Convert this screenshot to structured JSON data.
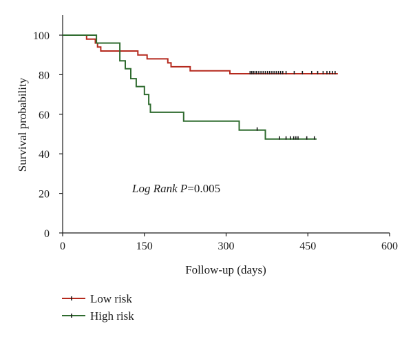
{
  "chart_data": {
    "type": "line",
    "xlabel": "Follow-up (days)",
    "ylabel": "Survival probability",
    "xlim": [
      0,
      600
    ],
    "ylim": [
      0,
      100
    ],
    "xticks": [
      0,
      150,
      300,
      450,
      600
    ],
    "yticks": [
      0,
      20,
      40,
      60,
      80,
      100
    ],
    "xtick_labels": [
      "0",
      "150",
      "300",
      "450",
      "600"
    ],
    "ytick_labels": [
      "0",
      "20",
      "40",
      "60",
      "80",
      "100"
    ],
    "grid": false,
    "legend_position": "bottom-left",
    "annotation": {
      "italic_part": "Log Rank P",
      "rest": "=0.005",
      "x": 180,
      "y": 23
    },
    "series": [
      {
        "name": "Low risk",
        "color": "#b5291d",
        "steps": [
          [
            0,
            100
          ],
          [
            44,
            100
          ],
          [
            44,
            98
          ],
          [
            60,
            98
          ],
          [
            60,
            96
          ],
          [
            64,
            96
          ],
          [
            64,
            94
          ],
          [
            70,
            94
          ],
          [
            70,
            92
          ],
          [
            138,
            92
          ],
          [
            138,
            90
          ],
          [
            155,
            90
          ],
          [
            155,
            88
          ],
          [
            193,
            88
          ],
          [
            193,
            86
          ],
          [
            199,
            86
          ],
          [
            199,
            84
          ],
          [
            234,
            84
          ],
          [
            234,
            82
          ],
          [
            307,
            82
          ],
          [
            307,
            80.5
          ],
          [
            505,
            80.5
          ]
        ],
        "censored": [
          [
            344,
            80.5
          ],
          [
            347,
            80.5
          ],
          [
            350,
            80.5
          ],
          [
            353,
            80.5
          ],
          [
            356,
            80.5
          ],
          [
            360,
            80.5
          ],
          [
            364,
            80.5
          ],
          [
            368,
            80.5
          ],
          [
            372,
            80.5
          ],
          [
            376,
            80.5
          ],
          [
            380,
            80.5
          ],
          [
            384,
            80.5
          ],
          [
            388,
            80.5
          ],
          [
            392,
            80.5
          ],
          [
            396,
            80.5
          ],
          [
            400,
            80.5
          ],
          [
            404,
            80.5
          ],
          [
            410,
            80.5
          ],
          [
            425,
            80.5
          ],
          [
            440,
            80.5
          ],
          [
            457,
            80.5
          ],
          [
            468,
            80.5
          ],
          [
            478,
            80.5
          ],
          [
            485,
            80.5
          ],
          [
            490,
            80.5
          ],
          [
            495,
            80.5
          ],
          [
            500,
            80.5
          ]
        ]
      },
      {
        "name": "High risk",
        "color": "#2f6b2f",
        "steps": [
          [
            0,
            100
          ],
          [
            62,
            100
          ],
          [
            62,
            96
          ],
          [
            105,
            96
          ],
          [
            105,
            87
          ],
          [
            115,
            87
          ],
          [
            115,
            83
          ],
          [
            125,
            83
          ],
          [
            125,
            78
          ],
          [
            135,
            78
          ],
          [
            135,
            74
          ],
          [
            150,
            74
          ],
          [
            150,
            70
          ],
          [
            158,
            70
          ],
          [
            158,
            65
          ],
          [
            161,
            65
          ],
          [
            161,
            61
          ],
          [
            222,
            61
          ],
          [
            222,
            56.5
          ],
          [
            324,
            56.5
          ],
          [
            324,
            52
          ],
          [
            372,
            52
          ],
          [
            372,
            47.5
          ],
          [
            466,
            47.5
          ]
        ],
        "censored": [
          [
            357,
            52
          ],
          [
            398,
            47.5
          ],
          [
            410,
            47.5
          ],
          [
            418,
            47.5
          ],
          [
            424,
            47.5
          ],
          [
            428,
            47.5
          ],
          [
            432,
            47.5
          ],
          [
            448,
            47.5
          ],
          [
            462,
            47.5
          ]
        ]
      }
    ]
  }
}
